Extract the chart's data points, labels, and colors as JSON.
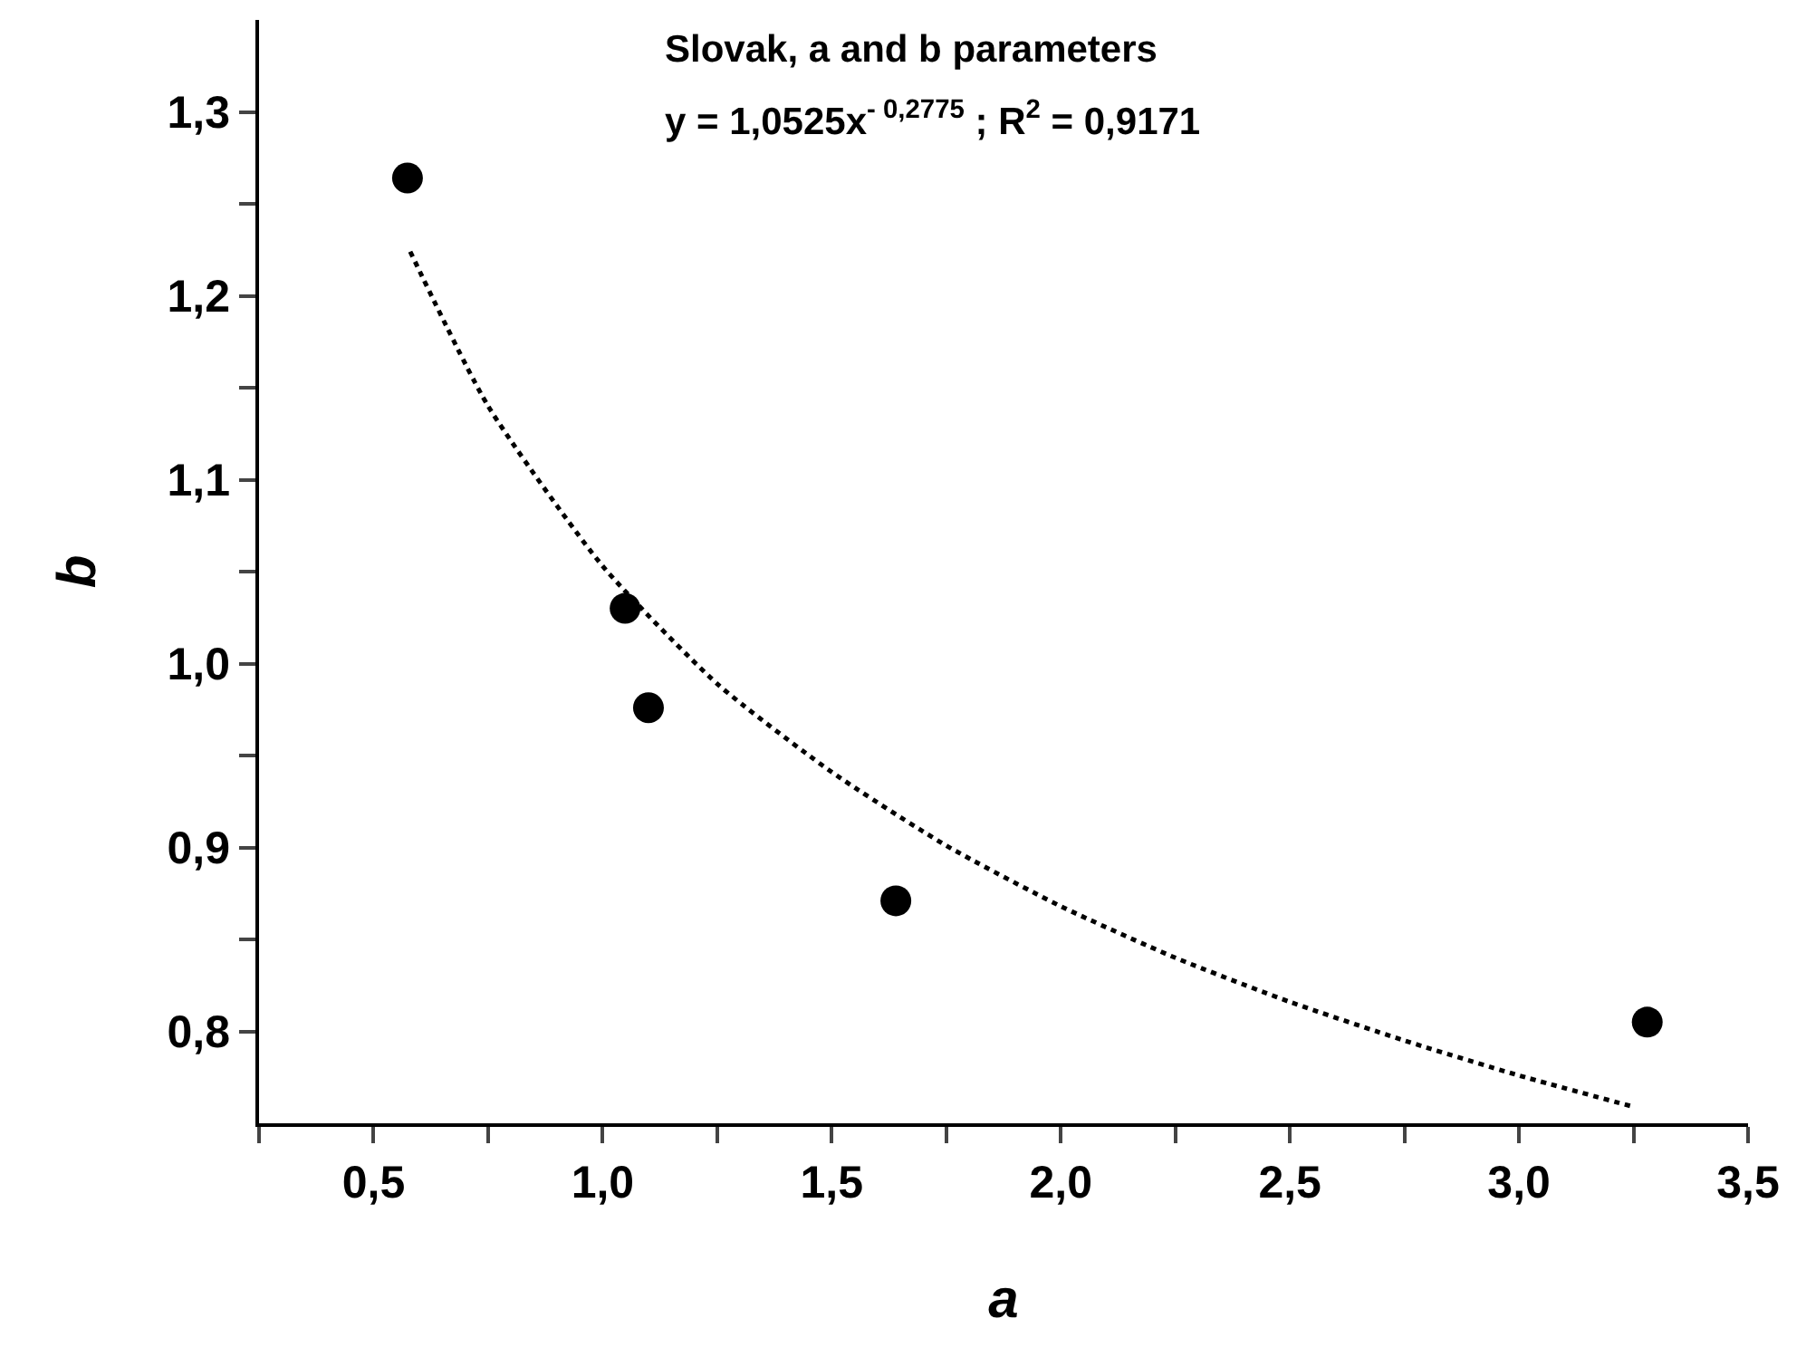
{
  "chart_data": {
    "type": "scatter",
    "title": "Slovak, a and b parameters",
    "subtitle": "y = 1,0525x$^{- 0,2775}$ ; R$^{2}$ = 0,9171",
    "xlabel": "a",
    "ylabel": "b",
    "marker": "circle",
    "series": [
      {
        "color": "#000000",
        "x": [
          0.574,
          1.049,
          1.1,
          1.64,
          3.28
        ],
        "values": [
          1.264,
          1.03,
          0.976,
          0.871,
          0.805
        ]
      },
      {
        "type": "line",
        "color": "#000000",
        "marker": "none",
        "line_style": "dotted",
        "x": [
          0.58,
          0.75,
          1.0,
          1.25,
          1.5,
          1.75,
          2.0,
          2.25,
          2.5,
          2.75,
          3.0,
          3.25
        ],
        "values": [
          1.224,
          1.14,
          1.053,
          0.989,
          0.941,
          0.901,
          0.868,
          0.84,
          0.816,
          0.795,
          0.776,
          0.759
        ]
      }
    ],
    "xlim": [
      0.25,
      3.5
    ],
    "xticks": [
      {
        "value": 0.25,
        "label": null
      },
      {
        "value": 0.5,
        "label": "0,5"
      },
      {
        "value": 0.75,
        "label": null
      },
      {
        "value": 1.0,
        "label": "1,0"
      },
      {
        "value": 1.25,
        "label": null
      },
      {
        "value": 1.5,
        "label": "1,5"
      },
      {
        "value": 1.75,
        "label": null
      },
      {
        "value": 2.0,
        "label": "2,0"
      },
      {
        "value": 2.25,
        "label": null
      },
      {
        "value": 2.5,
        "label": "2,5"
      },
      {
        "value": 2.75,
        "label": null
      },
      {
        "value": 3.0,
        "label": "3,0"
      },
      {
        "value": 3.25,
        "label": null
      },
      {
        "value": 3.5,
        "label": "3,5"
      }
    ],
    "ylim": [
      0.75,
      1.35
    ],
    "yticks": [
      {
        "value": 0.8,
        "label": "0,8"
      },
      {
        "value": 0.85,
        "label": null
      },
      {
        "value": 0.9,
        "label": "0,9"
      },
      {
        "value": 0.95,
        "label": null
      },
      {
        "value": 1.0,
        "label": "1,0"
      },
      {
        "value": 1.05,
        "label": null
      },
      {
        "value": 1.1,
        "label": "1,1"
      },
      {
        "value": 1.15,
        "label": null
      },
      {
        "value": 1.2,
        "label": "1,2"
      },
      {
        "value": 1.25,
        "label": null
      },
      {
        "value": 1.3,
        "label": "1,3"
      }
    ]
  }
}
